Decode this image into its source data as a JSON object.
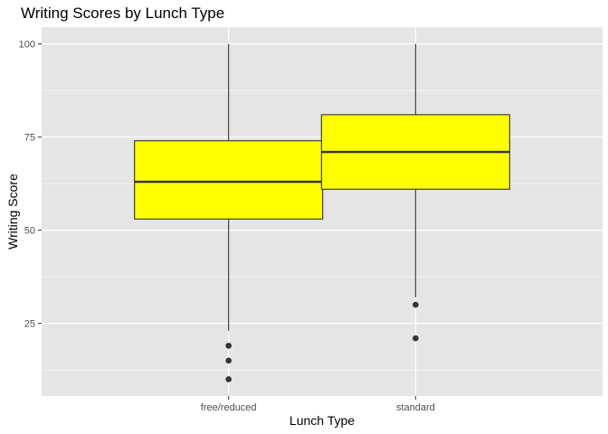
{
  "chart_data": {
    "type": "boxplot",
    "title": "Writing Scores by Lunch Type",
    "xlabel": "Lunch Type",
    "ylabel": "Writing Score",
    "categories": [
      "free/reduced",
      "standard"
    ],
    "boxes": [
      {
        "category": "free/reduced",
        "whisker_low": 23,
        "q1": 53,
        "median": 63,
        "q3": 74,
        "whisker_high": 100,
        "outliers": [
          19,
          15,
          10
        ]
      },
      {
        "category": "standard",
        "whisker_low": 32,
        "q1": 61,
        "median": 71,
        "q3": 81,
        "whisker_high": 100,
        "outliers": [
          30,
          21
        ]
      }
    ],
    "ylim": [
      5.5,
      104.5
    ],
    "yticks": [
      25,
      50,
      75,
      100
    ],
    "ytick_labels": [
      "25",
      "50",
      "75",
      "100"
    ],
    "grid": true,
    "colors": {
      "panel_bg": "#e5e5e5",
      "grid": "#ffffff",
      "box_fill": "#ffff00",
      "box_line": "#333333",
      "points": "#333333"
    }
  }
}
